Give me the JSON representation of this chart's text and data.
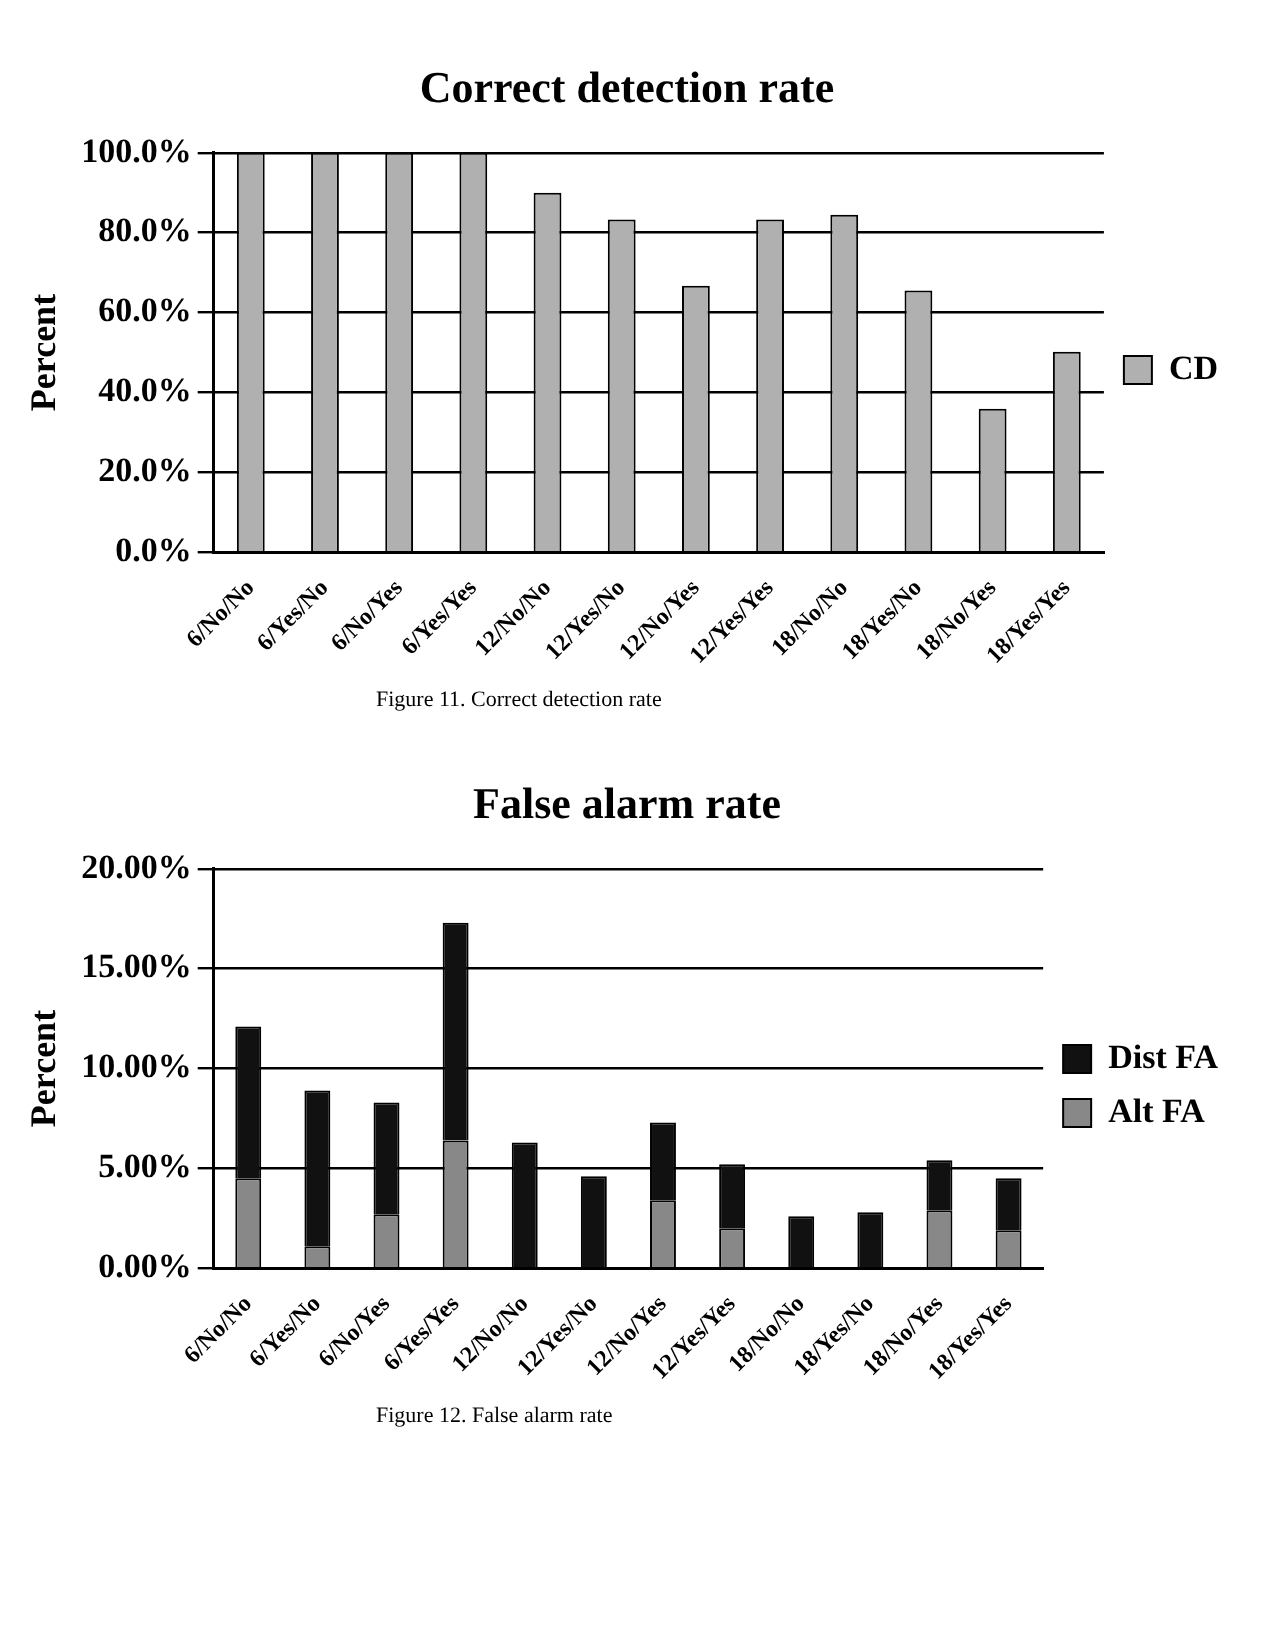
{
  "chart_data": [
    {
      "type": "bar",
      "title": "Correct detection rate",
      "ylabel": "Percent",
      "categories": [
        "6/No/No",
        "6/Yes/No",
        "6/No/Yes",
        "6/Yes/Yes",
        "12/No/No",
        "12/Yes/No",
        "12/No/Yes",
        "12/Yes/Yes",
        "18/No/No",
        "18/Yes/No",
        "18/No/Yes",
        "18/Yes/Yes"
      ],
      "series": [
        {
          "name": "CD",
          "color": "#b0b0b0",
          "values": [
            100,
            100,
            100,
            100,
            90,
            83.3,
            66.7,
            83.3,
            84.5,
            65.5,
            35.9,
            50.2
          ]
        }
      ],
      "ylim": [
        0,
        100
      ],
      "yticks": [
        {
          "value": 0,
          "label": "0.0%"
        },
        {
          "value": 20,
          "label": "20.0%"
        },
        {
          "value": 40,
          "label": "40.0%"
        },
        {
          "value": 60,
          "label": "60.0%"
        },
        {
          "value": 80,
          "label": "80.0%"
        },
        {
          "value": 100,
          "label": "100.0%"
        }
      ],
      "grid": "y",
      "legend": "right",
      "annotations": [
        "Figure 11.  Correct detection rate"
      ]
    },
    {
      "type": "bar",
      "title": "False alarm rate",
      "ylabel": "Percent",
      "stacked": true,
      "categories": [
        "6/No/No",
        "6/Yes/No",
        "6/No/Yes",
        "6/Yes/Yes",
        "12/No/No",
        "12/Yes/No",
        "12/No/Yes",
        "12/Yes/Yes",
        "18/No/No",
        "18/Yes/No",
        "18/No/Yes",
        "18/Yes/Yes"
      ],
      "series": [
        {
          "name": "Alt FA",
          "color": "#888888",
          "values": [
            4.5,
            1.1,
            2.7,
            6.4,
            0,
            0,
            3.4,
            2.0,
            0,
            0,
            2.9,
            1.9
          ]
        },
        {
          "name": "Dist FA",
          "color": "#111111",
          "values": [
            7.6,
            7.8,
            5.6,
            10.9,
            6.3,
            4.6,
            3.9,
            3.2,
            2.6,
            2.8,
            2.5,
            2.6
          ]
        }
      ],
      "ylim": [
        0,
        20
      ],
      "yticks": [
        {
          "value": 0,
          "label": "0.00%"
        },
        {
          "value": 5,
          "label": "5.00%"
        },
        {
          "value": 10,
          "label": "10.00%"
        },
        {
          "value": 15,
          "label": "15.00%"
        },
        {
          "value": 20,
          "label": "20.00%"
        }
      ],
      "grid": "y",
      "legend": "right",
      "annotations": [
        "Figure 12.  False alarm rate"
      ]
    }
  ]
}
